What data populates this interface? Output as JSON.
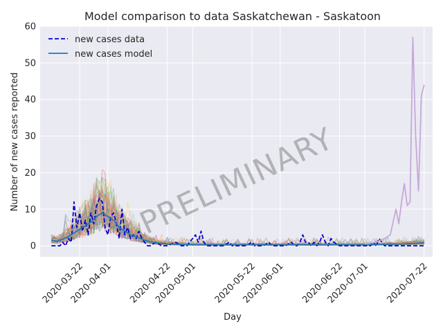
{
  "chart_data": {
    "type": "line",
    "title": "Model comparison to data Saskatchewan - Saskatoon",
    "xlabel": "Day",
    "ylabel": "Number of new cases reported",
    "x_range": [
      "2020-03-08",
      "2020-07-25"
    ],
    "ylim": [
      -3,
      60
    ],
    "y_ticks": [
      0,
      10,
      20,
      30,
      40,
      50,
      60
    ],
    "x_ticks": [
      "2020-03-22",
      "2020-04-01",
      "2020-04-22",
      "2020-05-01",
      "2020-05-22",
      "2020-06-01",
      "2020-06-22",
      "2020-07-01",
      "2020-07-22"
    ],
    "grid": true,
    "legend": {
      "placement": "top-left",
      "entries": [
        "new cases data",
        "new cases model"
      ]
    },
    "watermark": "PRELIMINARY",
    "colors": {
      "background": "#eaeaf2",
      "grid": "#ffffff",
      "data_line": "#0000cc",
      "model_line": "#1f77b4",
      "ensemble": [
        "#4e79a7",
        "#e15759",
        "#59a14f",
        "#edc948",
        "#b07aa1",
        "#76b7b2",
        "#ff9da7",
        "#9c755f"
      ],
      "outlier_series": "#c5a9d8"
    },
    "series": [
      {
        "name": "new cases data",
        "style": "dashed",
        "x": [
          "2020-03-12",
          "2020-03-14",
          "2020-03-15",
          "2020-03-16",
          "2020-03-17",
          "2020-03-18",
          "2020-03-19",
          "2020-03-20",
          "2020-03-21",
          "2020-03-22",
          "2020-03-23",
          "2020-03-24",
          "2020-03-25",
          "2020-03-26",
          "2020-03-27",
          "2020-03-28",
          "2020-03-29",
          "2020-03-30",
          "2020-03-31",
          "2020-04-01",
          "2020-04-02",
          "2020-04-03",
          "2020-04-04",
          "2020-04-05",
          "2020-04-06",
          "2020-04-07",
          "2020-04-08",
          "2020-04-09",
          "2020-04-10",
          "2020-04-11",
          "2020-04-12",
          "2020-04-13",
          "2020-04-14",
          "2020-04-15",
          "2020-04-16",
          "2020-04-18",
          "2020-04-20",
          "2020-04-22",
          "2020-04-25",
          "2020-04-27",
          "2020-04-29",
          "2020-05-01",
          "2020-05-02",
          "2020-05-03",
          "2020-05-04",
          "2020-05-05",
          "2020-05-06",
          "2020-05-08",
          "2020-05-10",
          "2020-05-12",
          "2020-05-14",
          "2020-05-15",
          "2020-05-16",
          "2020-05-18",
          "2020-05-20",
          "2020-05-22",
          "2020-05-23",
          "2020-05-24",
          "2020-05-26",
          "2020-05-28",
          "2020-05-29",
          "2020-05-30",
          "2020-06-01",
          "2020-06-03",
          "2020-06-05",
          "2020-06-06",
          "2020-06-07",
          "2020-06-08",
          "2020-06-09",
          "2020-06-10",
          "2020-06-11",
          "2020-06-12",
          "2020-06-13",
          "2020-06-14",
          "2020-06-15",
          "2020-06-16",
          "2020-06-17",
          "2020-06-18",
          "2020-06-19",
          "2020-06-20",
          "2020-06-22",
          "2020-06-24",
          "2020-06-26",
          "2020-06-28",
          "2020-06-30",
          "2020-07-01",
          "2020-07-02",
          "2020-07-03",
          "2020-07-04",
          "2020-07-05",
          "2020-07-06",
          "2020-07-08",
          "2020-07-10",
          "2020-07-12",
          "2020-07-14",
          "2020-07-16",
          "2020-07-18",
          "2020-07-20",
          "2020-07-22"
        ],
        "y": [
          0,
          0,
          0,
          1,
          0,
          2,
          1,
          12,
          5,
          9,
          4,
          7,
          3,
          9,
          6,
          11,
          13,
          12,
          5,
          3,
          8,
          9,
          6,
          2,
          10,
          3,
          5,
          2,
          3,
          2,
          4,
          2,
          1,
          0,
          0,
          1,
          0,
          0,
          1,
          0,
          0,
          2,
          3,
          1,
          4,
          1,
          0,
          0,
          0,
          0,
          1,
          0,
          0,
          0,
          0,
          1,
          0,
          0,
          0,
          1,
          0,
          0,
          0,
          0,
          1,
          0,
          0,
          1,
          3,
          1,
          1,
          0,
          1,
          0,
          1,
          3,
          1,
          0,
          2,
          1,
          0,
          0,
          0,
          0,
          0,
          0,
          0,
          0,
          1,
          0,
          2,
          0,
          0,
          0,
          0,
          0,
          0,
          0,
          0
        ]
      },
      {
        "name": "new cases model",
        "style": "solid",
        "x": [
          "2020-03-12",
          "2020-03-14",
          "2020-03-16",
          "2020-03-18",
          "2020-03-20",
          "2020-03-22",
          "2020-03-24",
          "2020-03-26",
          "2020-03-28",
          "2020-03-30",
          "2020-04-01",
          "2020-04-03",
          "2020-04-05",
          "2020-04-07",
          "2020-04-09",
          "2020-04-11",
          "2020-04-14",
          "2020-04-18",
          "2020-04-22",
          "2020-05-01",
          "2020-05-15",
          "2020-06-01",
          "2020-06-15",
          "2020-07-01",
          "2020-07-15",
          "2020-07-22"
        ],
        "y": [
          1.5,
          1.2,
          1.8,
          2.5,
          3.5,
          4.5,
          5.5,
          6.5,
          8,
          9,
          8,
          7,
          5,
          4,
          3,
          2.5,
          1.5,
          0.8,
          0.5,
          0.3,
          0.3,
          0.3,
          0.3,
          0.3,
          0.5,
          0.8
        ]
      },
      {
        "x": [
          "2020-07-01",
          "2020-07-05",
          "2020-07-08",
          "2020-07-10",
          "2020-07-12",
          "2020-07-13",
          "2020-07-14",
          "2020-07-15",
          "2020-07-16",
          "2020-07-17",
          "2020-07-18",
          "2020-07-19",
          "2020-07-20",
          "2020-07-21",
          "2020-07-22"
        ],
        "y": [
          0.5,
          1,
          2,
          3,
          10,
          6,
          12,
          17,
          11,
          12,
          57,
          30,
          15,
          41,
          44
        ]
      }
    ]
  }
}
